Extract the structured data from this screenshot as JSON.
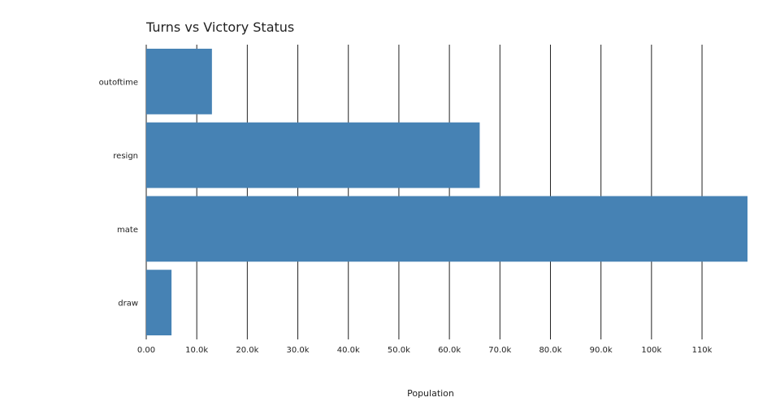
{
  "chart_data": {
    "type": "bar",
    "orientation": "horizontal",
    "title": "Turns vs Victory Status",
    "xlabel": "Population",
    "ylabel": "",
    "categories": [
      "outoftime",
      "resign",
      "mate",
      "draw"
    ],
    "values": [
      13000,
      66000,
      119000,
      5000
    ],
    "xlim": [
      0,
      119000
    ],
    "xticks": [
      0,
      10000,
      20000,
      30000,
      40000,
      50000,
      60000,
      70000,
      80000,
      90000,
      100000,
      110000
    ],
    "xtick_labels": [
      "0.00",
      "10.0k",
      "20.0k",
      "30.0k",
      "40.0k",
      "50.0k",
      "60.0k",
      "70.0k",
      "80.0k",
      "90.0k",
      "100k",
      "110k"
    ],
    "bar_color": "#4682b4",
    "grid": "vertical"
  }
}
